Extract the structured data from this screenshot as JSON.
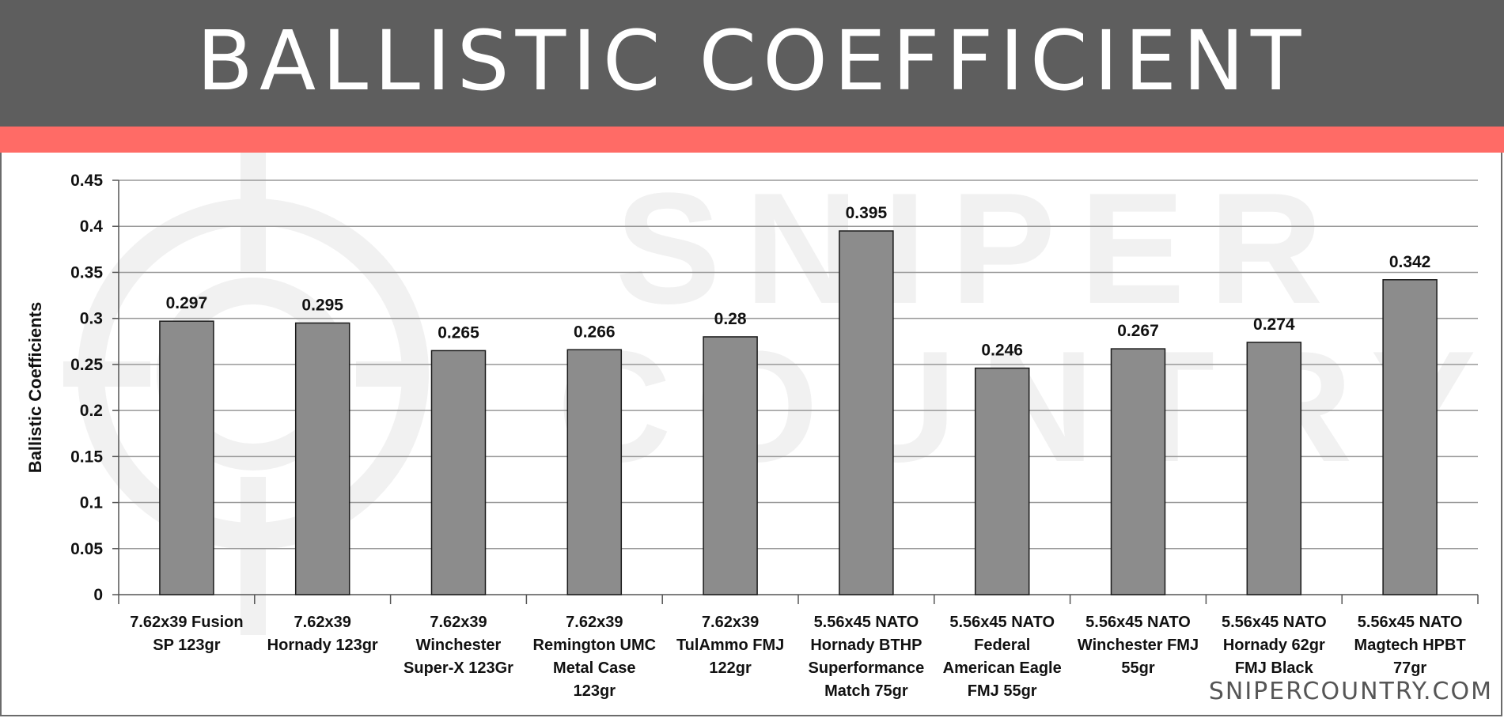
{
  "header": {
    "title": "BALLISTIC COEFFICIENT"
  },
  "brand": {
    "footer": "SNIPERCOUNTRY.COM",
    "watermark_line1": "SNIPER",
    "watermark_line2": "COUNTRY"
  },
  "colors": {
    "header_bg": "#5e5e5e",
    "accent": "#ff6b66",
    "bar_fill": "#8c8c8c",
    "bar_stroke": "#1a1a1a",
    "grid": "#999999"
  },
  "chart_data": {
    "type": "bar",
    "title": "",
    "xlabel": "",
    "ylabel": "Ballistic Coefficients",
    "ylim": [
      0,
      0.45
    ],
    "yticks": [
      "0",
      "0.05",
      "0.1",
      "0.15",
      "0.2",
      "0.25",
      "0.3",
      "0.35",
      "0.4",
      "0.45"
    ],
    "grid": true,
    "categories": [
      [
        "7.62x39 Fusion",
        "SP 123gr"
      ],
      [
        "7.62x39",
        "Hornady 123gr"
      ],
      [
        "7.62x39",
        "Winchester",
        "Super-X 123Gr"
      ],
      [
        "7.62x39",
        "Remington UMC",
        "Metal Case",
        "123gr"
      ],
      [
        "7.62x39",
        "TulAmmo FMJ",
        "122gr"
      ],
      [
        "5.56x45 NATO",
        "Hornady BTHP",
        "Superformance",
        "Match 75gr"
      ],
      [
        "5.56x45 NATO",
        "Federal",
        "American Eagle",
        "FMJ 55gr"
      ],
      [
        "5.56x45 NATO",
        "Winchester FMJ",
        "55gr"
      ],
      [
        "5.56x45 NATO",
        "Hornady 62gr",
        "FMJ Black"
      ],
      [
        "5.56x45 NATO",
        "Magtech HPBT",
        "77gr"
      ]
    ],
    "values": [
      0.297,
      0.295,
      0.265,
      0.266,
      0.28,
      0.395,
      0.246,
      0.267,
      0.274,
      0.342
    ],
    "data_labels": [
      "0.297",
      "0.295",
      "0.265",
      "0.266",
      "0.28",
      "0.395",
      "0.246",
      "0.267",
      "0.274",
      "0.342"
    ]
  }
}
